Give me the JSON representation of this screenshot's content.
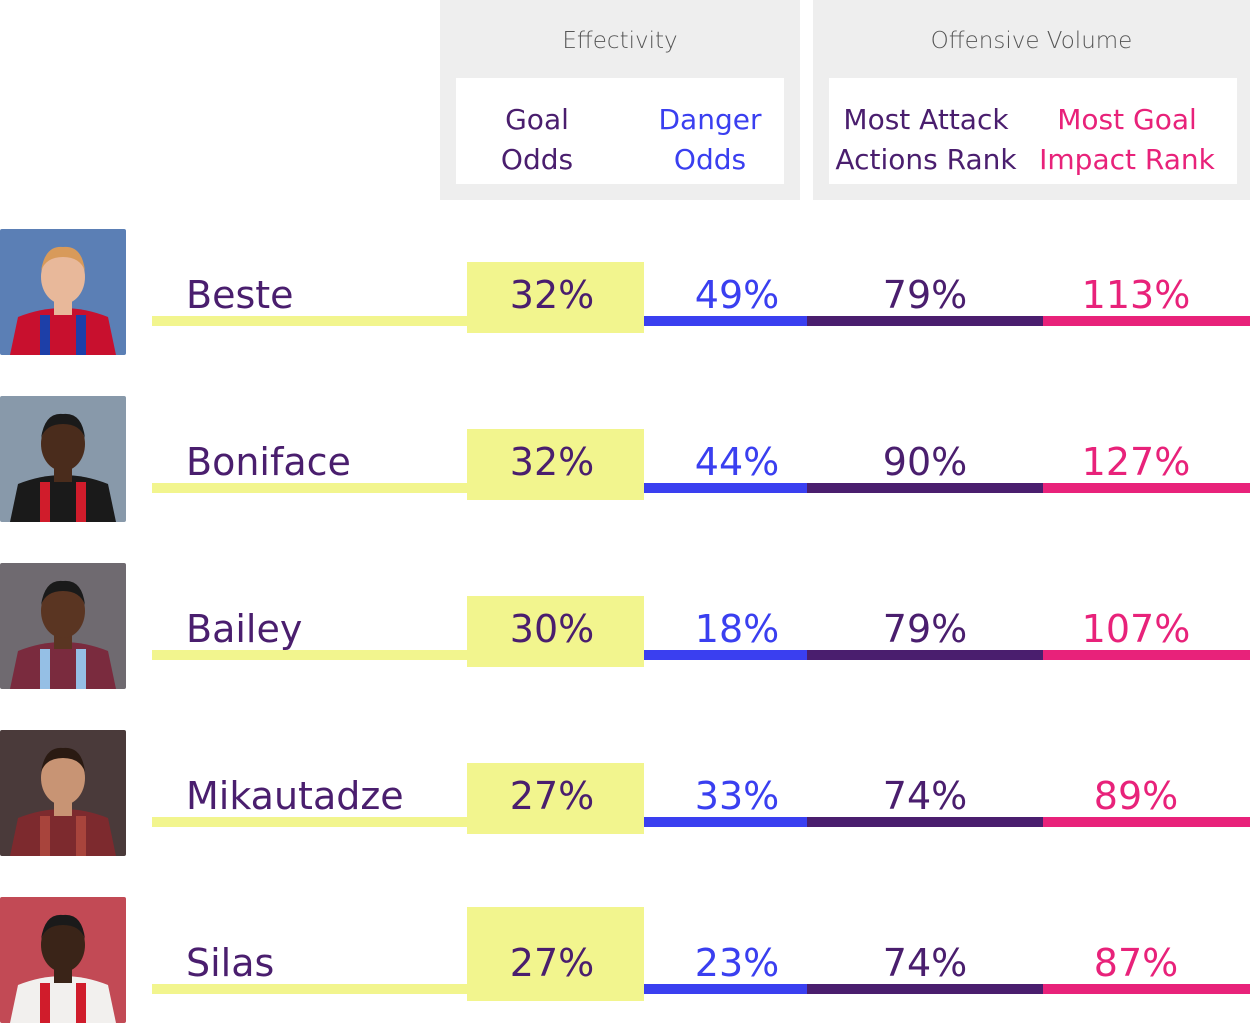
{
  "colors": {
    "goal": "#f2f58e",
    "goal_text": "#4a1e6e",
    "danger": "#3a3ff0",
    "attack": "#4a1e6e",
    "impact": "#e8227a"
  },
  "headers": {
    "effectivity": "Effectivity",
    "offensive_volume": "Offensive Volume",
    "goal_odds": [
      "Goal",
      "Odds"
    ],
    "danger_odds": [
      "Danger",
      "Odds"
    ],
    "most_attack": [
      "Most Attack",
      "Actions Rank"
    ],
    "most_goal": [
      "Most Goal",
      "Impact Rank"
    ]
  },
  "chart_data": {
    "type": "table",
    "columns": [
      "Goal Odds",
      "Danger Odds",
      "Most Attack Actions Rank",
      "Most Goal Impact Rank"
    ],
    "rows": [
      {
        "player": "Beste",
        "goal_odds": "32%",
        "danger_odds": "49%",
        "most_attack": "79%",
        "most_goal": "113%"
      },
      {
        "player": "Boniface",
        "goal_odds": "32%",
        "danger_odds": "44%",
        "most_attack": "90%",
        "most_goal": "127%"
      },
      {
        "player": "Bailey",
        "goal_odds": "30%",
        "danger_odds": "18%",
        "most_attack": "79%",
        "most_goal": "107%"
      },
      {
        "player": "Mikautadze",
        "goal_odds": "27%",
        "danger_odds": "33%",
        "most_attack": "74%",
        "most_goal": "89%"
      },
      {
        "player": "Silas",
        "goal_odds": "27%",
        "danger_odds": "23%",
        "most_attack": "74%",
        "most_goal": "87%"
      }
    ]
  },
  "photos": [
    {
      "shirt": "#c8102e",
      "stripe": "#1d3fa8",
      "skin": "#e8b89a",
      "hair": "#d89a5a",
      "bg": "#5b7fb5"
    },
    {
      "shirt": "#1a1a1a",
      "stripe": "#d01c2b",
      "skin": "#4a2c1c",
      "hair": "#1a1a1a",
      "bg": "#8899aa"
    },
    {
      "shirt": "#7a2b3e",
      "stripe": "#95bfe5",
      "skin": "#5a3522",
      "hair": "#1a1a1a",
      "bg": "#6f6a70"
    },
    {
      "shirt": "#7d2a2e",
      "stripe": "#a8443c",
      "skin": "#c89474",
      "hair": "#2a1a12",
      "bg": "#4a3a3a"
    },
    {
      "shirt": "#f2f0ee",
      "stripe": "#d01c2b",
      "skin": "#3a2418",
      "hair": "#1a1a1a",
      "bg": "#c24a55"
    }
  ]
}
